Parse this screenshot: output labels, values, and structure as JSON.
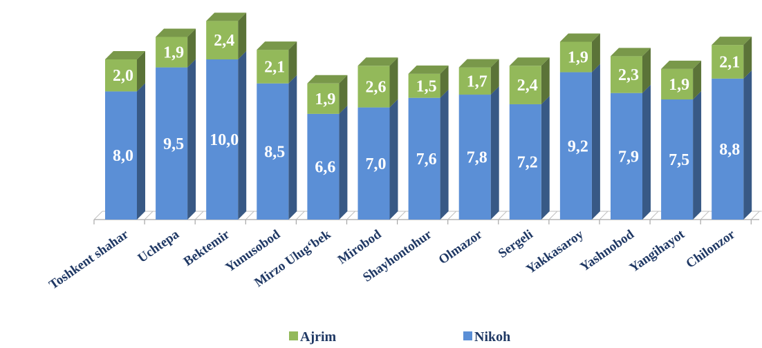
{
  "chart_data": {
    "type": "bar",
    "stacked": true,
    "three_d": true,
    "categories": [
      "Toshkent shahar",
      "Uchtepa",
      "Bektemir",
      "Yunusobod",
      "Mirzo Ulug‘bek",
      "Mirobod",
      "Shayhontohur",
      "Olmazor",
      "Sergeli",
      "Yakkasaroy",
      "Yashnobod",
      "Yangihayot",
      "Chilonzor"
    ],
    "series": [
      {
        "name": "Nikoh",
        "color": "#5b8fd6",
        "values": [
          8.0,
          9.5,
          10.0,
          8.5,
          6.6,
          7.0,
          7.6,
          7.8,
          7.2,
          9.2,
          7.9,
          7.5,
          8.8
        ],
        "labels": [
          "8,0",
          "9,5",
          "10,0",
          "8,5",
          "6,6",
          "7,0",
          "7,6",
          "7,8",
          "7,2",
          "9,2",
          "7,9",
          "7,5",
          "8,8"
        ]
      },
      {
        "name": "Ajrim",
        "color": "#93b95a",
        "values": [
          2.0,
          1.9,
          2.4,
          2.1,
          1.9,
          2.6,
          1.5,
          1.7,
          2.4,
          1.9,
          2.3,
          1.9,
          2.1
        ],
        "labels": [
          "2,0",
          "1,9",
          "2,4",
          "2,1",
          "1,9",
          "2,6",
          "1,5",
          "1,7",
          "2,4",
          "1,9",
          "2,3",
          "1,9",
          "2,1"
        ]
      }
    ],
    "legend": {
      "position": "bottom",
      "order": [
        "Ajrim",
        "Nikoh"
      ]
    },
    "grid": false,
    "value_labels": true
  }
}
